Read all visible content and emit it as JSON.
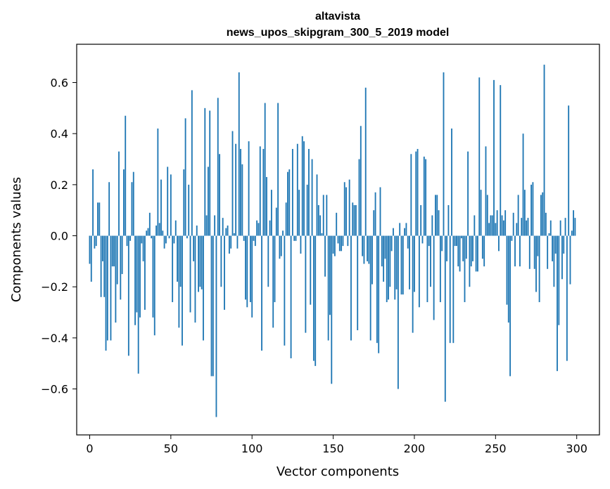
{
  "chart_data": {
    "type": "bar",
    "title": "altavista",
    "subtitle": "news_upos_skipgram_300_5_2019 model",
    "xlabel": "Vector components",
    "ylabel": "Components values",
    "xlim": [
      -8,
      314
    ],
    "ylim": [
      -0.78,
      0.75
    ],
    "xticks": [
      0,
      50,
      100,
      150,
      200,
      250,
      300
    ],
    "xtick_labels": [
      "0",
      "50",
      "100",
      "150",
      "200",
      "250",
      "300"
    ],
    "yticks": [
      -0.6,
      -0.4,
      -0.2,
      0.0,
      0.2,
      0.4,
      0.6
    ],
    "ytick_labels": [
      "−0.6",
      "−0.4",
      "−0.2",
      "0.0",
      "0.2",
      "0.4",
      "0.6"
    ],
    "grid": false,
    "bar_color": "#1f77b4",
    "x": "0..299",
    "values": [
      -0.11,
      -0.18,
      0.26,
      -0.05,
      -0.04,
      0.13,
      0.13,
      -0.24,
      -0.1,
      -0.24,
      -0.45,
      -0.41,
      0.21,
      -0.41,
      -0.12,
      -0.12,
      -0.34,
      -0.19,
      0.33,
      -0.25,
      -0.15,
      0.26,
      0.47,
      -0.04,
      -0.47,
      -0.02,
      0.21,
      0.25,
      -0.35,
      -0.3,
      -0.54,
      -0.32,
      -0.03,
      -0.1,
      -0.29,
      0.02,
      0.03,
      0.09,
      -0.01,
      -0.32,
      -0.39,
      0.04,
      0.42,
      0.05,
      0.22,
      0.02,
      -0.05,
      -0.03,
      0.27,
      -0.01,
      0.24,
      -0.26,
      -0.03,
      0.06,
      -0.18,
      -0.36,
      -0.2,
      -0.43,
      0.26,
      0.46,
      -0.01,
      0.2,
      -0.3,
      0.57,
      -0.1,
      -0.34,
      0.04,
      -0.22,
      -0.2,
      -0.21,
      -0.41,
      0.5,
      0.08,
      0.27,
      0.49,
      -0.55,
      -0.55,
      0.08,
      -0.71,
      0.54,
      0.32,
      -0.2,
      0.07,
      -0.29,
      0.03,
      0.04,
      -0.07,
      -0.05,
      0.41,
      0.01,
      0.36,
      -0.05,
      0.64,
      0.34,
      0.28,
      -0.02,
      -0.25,
      -0.28,
      0.37,
      -0.26,
      -0.32,
      -0.02,
      -0.04,
      0.06,
      0.05,
      0.35,
      -0.45,
      0.34,
      0.52,
      0.23,
      -0.2,
      0.06,
      0.18,
      -0.36,
      -0.26,
      0.11,
      0.52,
      -0.09,
      -0.08,
      0.02,
      -0.43,
      0.13,
      0.25,
      0.26,
      -0.48,
      0.34,
      -0.02,
      -0.02,
      0.36,
      0.18,
      -0.07,
      0.39,
      0.37,
      -0.38,
      0.2,
      0.34,
      -0.27,
      0.3,
      -0.49,
      -0.51,
      0.24,
      0.12,
      0.08,
      0.01,
      0.16,
      -0.16,
      0.16,
      -0.41,
      -0.31,
      -0.58,
      -0.07,
      -0.08,
      0.09,
      -0.03,
      -0.06,
      -0.06,
      -0.04,
      0.21,
      0.19,
      -0.04,
      0.22,
      -0.41,
      0.13,
      0.12,
      0.12,
      -0.37,
      0.3,
      0.43,
      -0.08,
      -0.11,
      0.58,
      -0.1,
      -0.11,
      -0.41,
      -0.19,
      0.1,
      0.17,
      -0.42,
      -0.46,
      0.19,
      -0.12,
      -0.18,
      -0.09,
      -0.26,
      -0.25,
      -0.2,
      -0.06,
      0.03,
      -0.25,
      -0.21,
      -0.6,
      0.05,
      -0.23,
      -0.23,
      0.03,
      0.05,
      -0.05,
      -0.21,
      0.32,
      -0.38,
      -0.22,
      0.33,
      0.34,
      -0.28,
      0.12,
      -0.03,
      0.31,
      0.3,
      -0.26,
      -0.04,
      -0.2,
      0.08,
      -0.33,
      0.16,
      0.16,
      0.1,
      -0.26,
      -0.06,
      0.64,
      -0.65,
      -0.1,
      0.12,
      -0.42,
      0.42,
      -0.42,
      -0.04,
      -0.04,
      -0.12,
      -0.14,
      -0.01,
      -0.1,
      -0.26,
      -0.09,
      0.33,
      -0.2,
      -0.12,
      -0.1,
      0.08,
      -0.14,
      -0.14,
      0.62,
      0.18,
      -0.09,
      -0.12,
      0.35,
      0.16,
      0.05,
      0.08,
      0.08,
      0.61,
      0.05,
      0.1,
      -0.06,
      0.59,
      0.08,
      0.06,
      0.1,
      -0.27,
      -0.34,
      -0.55,
      -0.02,
      0.09,
      -0.12,
      0.05,
      0.16,
      -0.12,
      0.07,
      0.4,
      0.18,
      0.06,
      0.07,
      -0.13,
      0.2,
      0.21,
      -0.13,
      -0.22,
      -0.08,
      -0.26,
      0.16,
      0.17,
      0.67,
      0.09,
      -0.13,
      0.01,
      0.06,
      -0.1,
      -0.2,
      -0.07,
      -0.53,
      -0.35,
      0.06,
      -0.17,
      -0.07,
      0.07,
      -0.49,
      0.51,
      -0.19,
      0.02,
      0.1,
      0.07
    ]
  }
}
